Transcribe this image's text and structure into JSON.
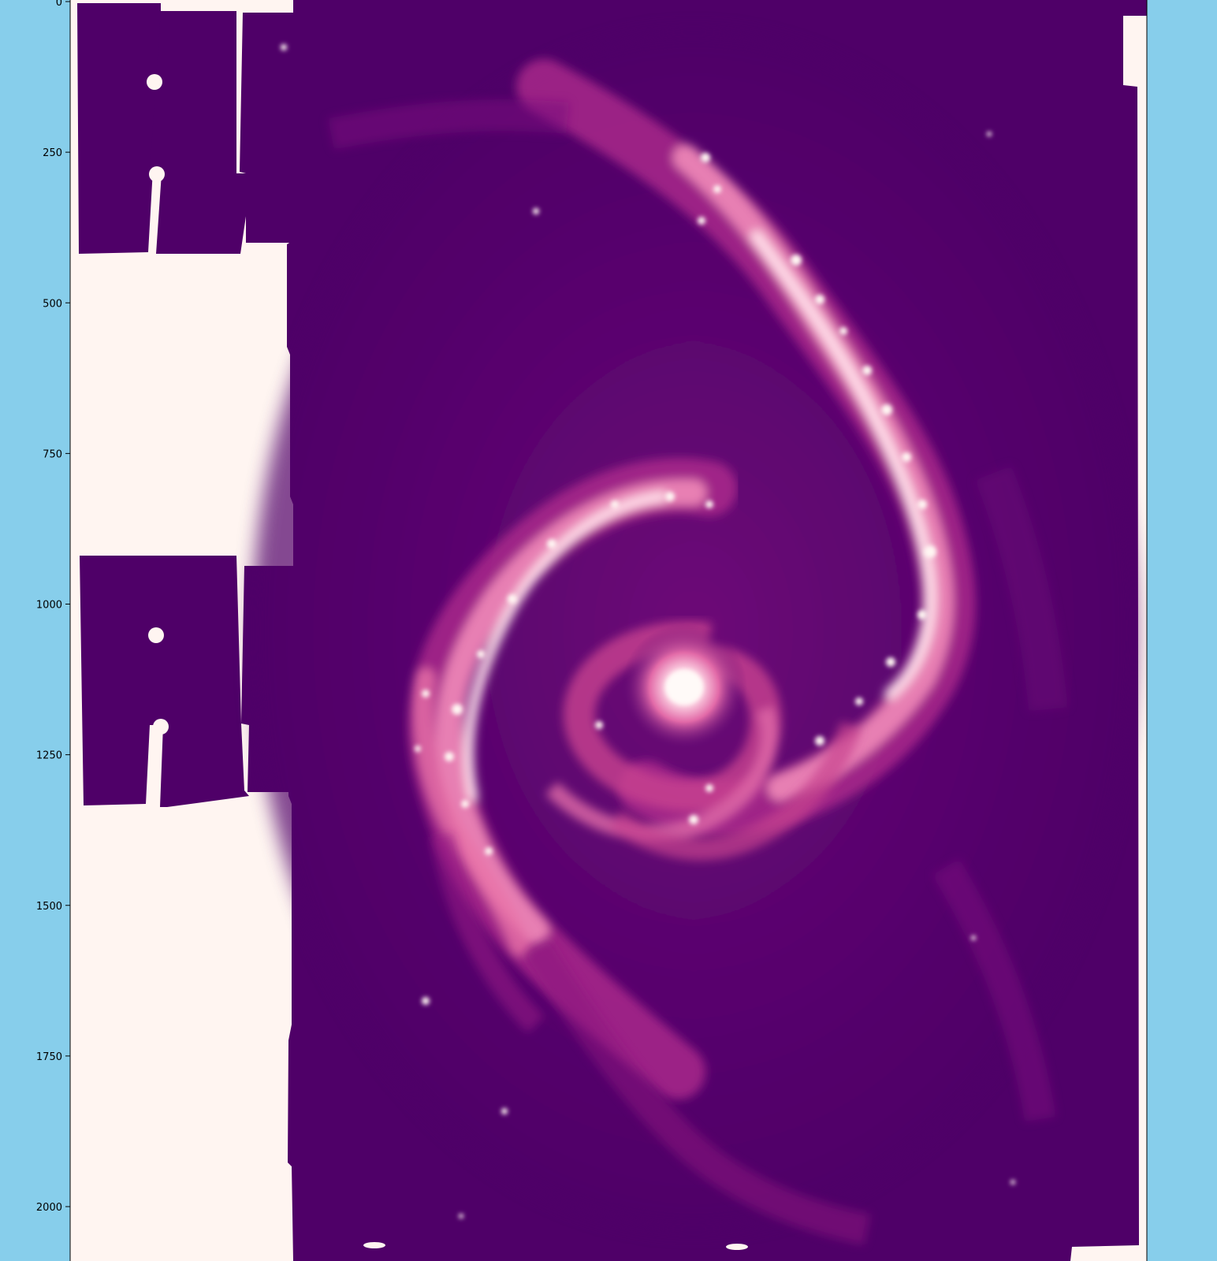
{
  "figure": {
    "background_color": "#87ceeb",
    "blank_pixel_color": "#fff5f1",
    "colormap": [
      "#4f0068",
      "#6a0777",
      "#9a1a86",
      "#cc3f95",
      "#f08ab0",
      "#ffd9e2",
      "#fff6f3"
    ]
  },
  "y_axis": {
    "tick_values": [
      0,
      250,
      500,
      750,
      1000,
      1250,
      1500,
      1750,
      2000
    ],
    "tick_labels": [
      "0",
      "250",
      "500",
      "750",
      "1000",
      "1250",
      "1500",
      "1750",
      "2000"
    ],
    "data_range": [
      0,
      2090
    ]
  },
  "image": {
    "description_icon": "spiral-galaxy-image"
  }
}
